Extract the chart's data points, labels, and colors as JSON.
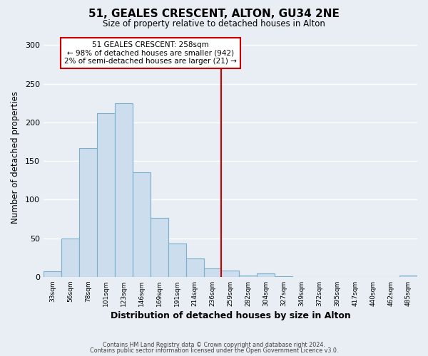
{
  "title": "51, GEALES CRESCENT, ALTON, GU34 2NE",
  "subtitle": "Size of property relative to detached houses in Alton",
  "xlabel": "Distribution of detached houses by size in Alton",
  "ylabel": "Number of detached properties",
  "bin_labels": [
    "33sqm",
    "56sqm",
    "78sqm",
    "101sqm",
    "123sqm",
    "146sqm",
    "169sqm",
    "191sqm",
    "214sqm",
    "236sqm",
    "259sqm",
    "282sqm",
    "304sqm",
    "327sqm",
    "349sqm",
    "372sqm",
    "395sqm",
    "417sqm",
    "440sqm",
    "462sqm",
    "485sqm"
  ],
  "bar_heights": [
    7,
    50,
    167,
    212,
    225,
    135,
    76,
    43,
    24,
    11,
    8,
    2,
    4,
    1,
    0,
    0,
    0,
    0,
    0,
    0,
    2
  ],
  "bar_color": "#ccdded",
  "bar_edge_color": "#7ab0cc",
  "vline_x_index": 10,
  "vline_color": "#cc0000",
  "annotation_title": "51 GEALES CRESCENT: 258sqm",
  "annotation_line1": "← 98% of detached houses are smaller (942)",
  "annotation_line2": "2% of semi-detached houses are larger (21) →",
  "annotation_box_facecolor": "#ffffff",
  "annotation_box_edgecolor": "#cc0000",
  "ylim": [
    0,
    310
  ],
  "yticks": [
    0,
    50,
    100,
    150,
    200,
    250,
    300
  ],
  "footer_line1": "Contains HM Land Registry data © Crown copyright and database right 2024.",
  "footer_line2": "Contains public sector information licensed under the Open Government Licence v3.0.",
  "background_color": "#e8eef4",
  "plot_background_color": "#e8eef4",
  "grid_color": "#ffffff",
  "num_bins": 21
}
